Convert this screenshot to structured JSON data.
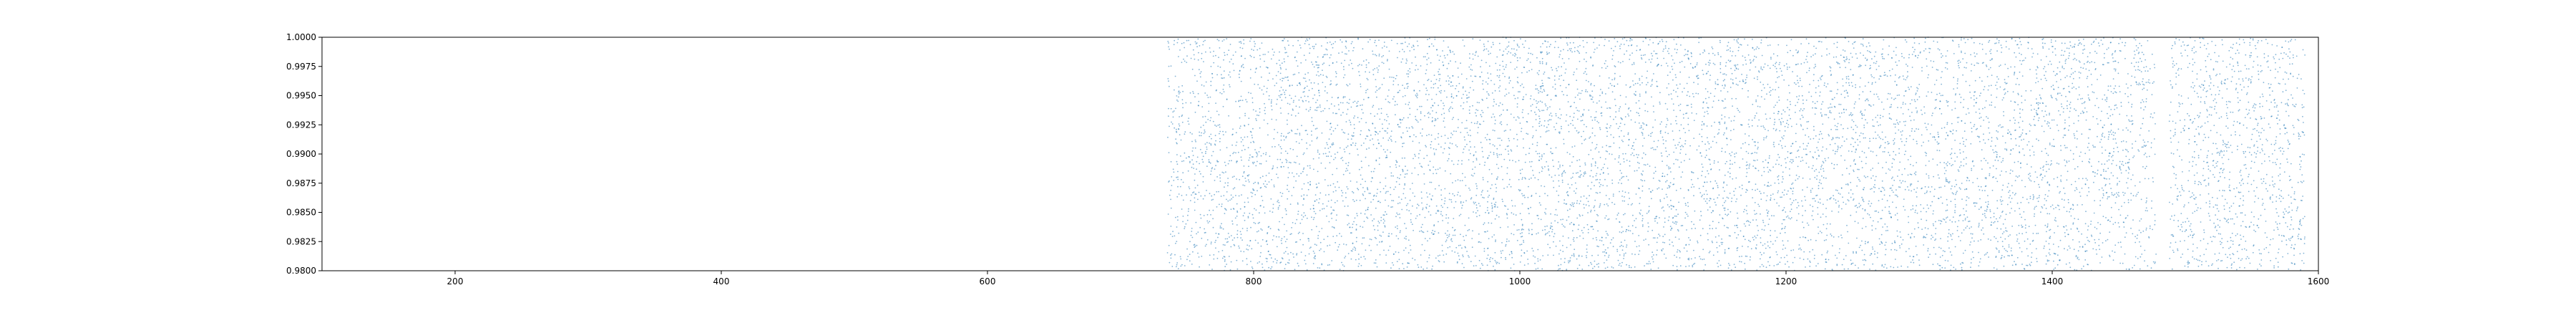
{
  "chart_data": {
    "type": "scatter",
    "title": "",
    "xlabel": "",
    "ylabel": "",
    "xlim": [
      100,
      1600
    ],
    "ylim": [
      0.98,
      1.0
    ],
    "x_ticks": [
      200,
      400,
      600,
      800,
      1000,
      1200,
      1400,
      1600
    ],
    "x_tick_labels": [
      "200",
      "400",
      "600",
      "800",
      "1000",
      "1200",
      "1400",
      "1600"
    ],
    "y_ticks": [
      0.98,
      0.9825,
      0.985,
      0.9875,
      0.99,
      0.9925,
      0.995,
      0.9975,
      1.0
    ],
    "y_tick_labels": [
      "0.9800",
      "0.9825",
      "0.9850",
      "0.9875",
      "0.9900",
      "0.9925",
      "0.9950",
      "0.9975",
      "1.0000"
    ],
    "grid": false,
    "legend": "none",
    "series": [
      {
        "marker": "dot",
        "color": "#1f77b4",
        "x_range": [
          735,
          1590
        ],
        "y_range": [
          0.98,
          1.0
        ],
        "gaps": [
          [
            1478,
            1488
          ]
        ],
        "approx_point_count": 9000
      }
    ]
  }
}
